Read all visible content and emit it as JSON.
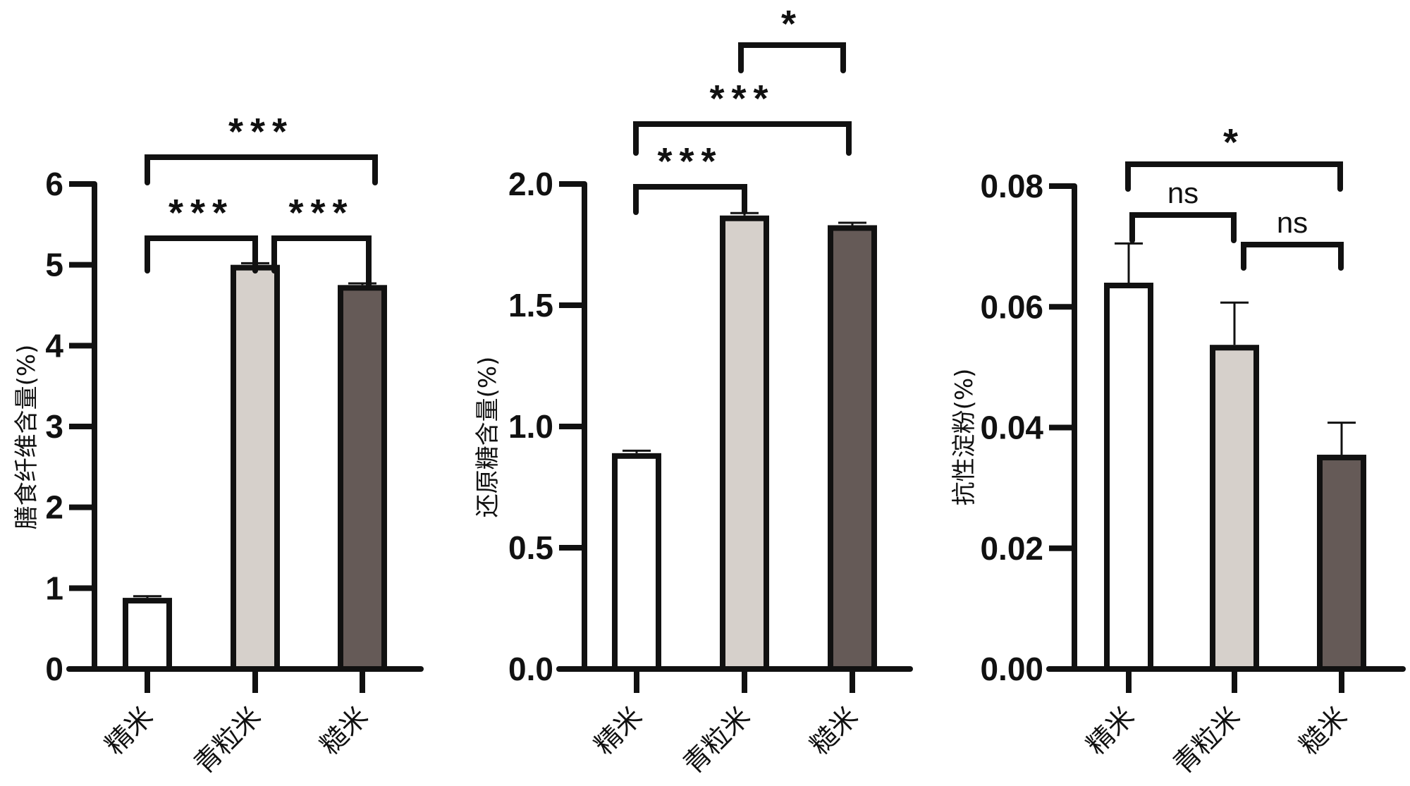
{
  "chart_data": [
    {
      "type": "bar",
      "categories": [
        "精米",
        "青粒米",
        "糙米"
      ],
      "values": [
        0.88,
        5.0,
        4.75
      ],
      "errors": [
        0.02,
        0.02,
        0.02
      ],
      "colors": [
        "#ffffff",
        "#d6d0cb",
        "#655a57"
      ],
      "ylabel": "膳食纤维含量(%)",
      "ylim": [
        0,
        6
      ],
      "yticks": [
        "0",
        "1",
        "2",
        "3",
        "4",
        "5",
        "6"
      ],
      "significance": [
        {
          "groups": [
            "精米",
            "青粒米"
          ],
          "label": "***"
        },
        {
          "groups": [
            "青粒米",
            "糙米"
          ],
          "label": "***"
        },
        {
          "groups": [
            "精米",
            "糙米"
          ],
          "label": "***"
        }
      ]
    },
    {
      "type": "bar",
      "categories": [
        "精米",
        "青粒米",
        "糙米"
      ],
      "values": [
        0.89,
        1.87,
        1.83
      ],
      "errors": [
        0.01,
        0.01,
        0.01
      ],
      "colors": [
        "#ffffff",
        "#d6d0cb",
        "#655a57"
      ],
      "ylabel": "还原糖含量(%)",
      "ylim": [
        0,
        2.0
      ],
      "yticks": [
        "0.0",
        "0.5",
        "1.0",
        "1.5",
        "2.0"
      ],
      "significance": [
        {
          "groups": [
            "精米",
            "青粒米"
          ],
          "label": "***"
        },
        {
          "groups": [
            "精米",
            "糙米"
          ],
          "label": "***"
        },
        {
          "groups": [
            "青粒米",
            "糙米"
          ],
          "label": "*"
        }
      ]
    },
    {
      "type": "bar",
      "categories": [
        "精米",
        "青粒米",
        "糙米"
      ],
      "values": [
        0.064,
        0.0537,
        0.0355
      ],
      "errors": [
        0.0065,
        0.007,
        0.0053
      ],
      "colors": [
        "#ffffff",
        "#d6d0cb",
        "#655a57"
      ],
      "ylabel": "抗性淀粉(%)",
      "ylim": [
        0,
        0.08
      ],
      "yticks": [
        "0.00",
        "0.02",
        "0.04",
        "0.06",
        "0.08"
      ],
      "significance": [
        {
          "groups": [
            "精米",
            "糙米"
          ],
          "label": "*"
        },
        {
          "groups": [
            "精米",
            "青粒米"
          ],
          "label": "ns"
        },
        {
          "groups": [
            "青粒米",
            "糙米"
          ],
          "label": "ns"
        }
      ]
    }
  ]
}
